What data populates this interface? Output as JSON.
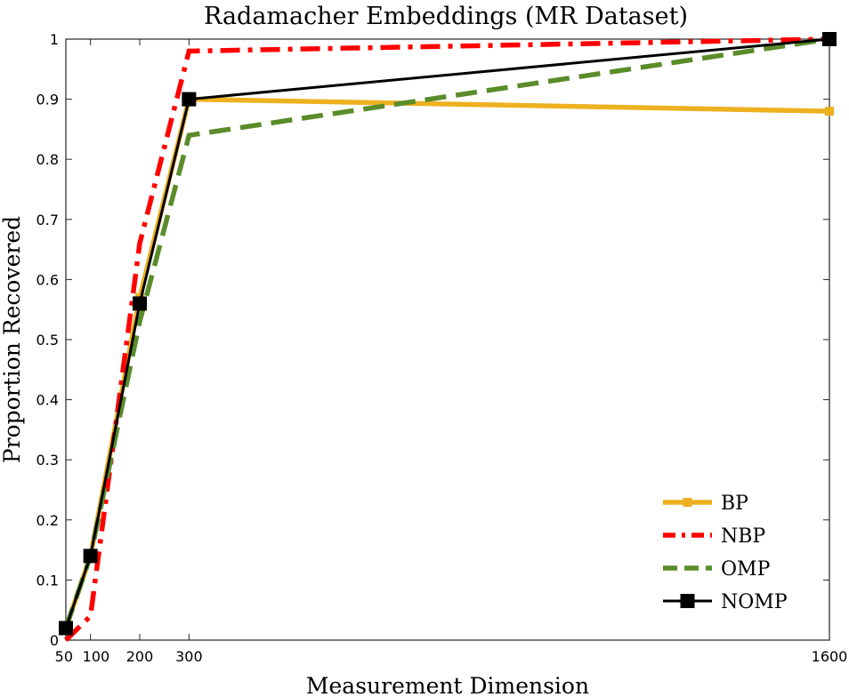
{
  "chart_data": {
    "type": "line",
    "title": "Radamacher Embeddings (MR Dataset)",
    "xlabel": "Measurement Dimension",
    "ylabel": "Proportion Recovered",
    "x": [
      50,
      100,
      200,
      300,
      1600
    ],
    "x_tick_labels": [
      "50",
      "100",
      "200",
      "300",
      "1600"
    ],
    "y_tick_labels": [
      "0",
      "0.1",
      "0.2",
      "0.3",
      "0.4",
      "0.5",
      "0.6",
      "0.7",
      "0.8",
      "0.9",
      "1"
    ],
    "xlim": [
      50,
      1600
    ],
    "ylim": [
      0,
      1
    ],
    "grid": false,
    "legend_position": "bottom-right",
    "series": [
      {
        "name": "BP",
        "values": [
          0.02,
          0.14,
          0.57,
          0.9,
          0.88
        ],
        "color": "#EDB120",
        "line_style": "solid",
        "marker": "square-small"
      },
      {
        "name": "NBP",
        "values": [
          0.0,
          0.04,
          0.66,
          0.98,
          1.0
        ],
        "color": "#FF0000",
        "line_style": "dashdot",
        "marker": "none"
      },
      {
        "name": "OMP",
        "values": [
          0.02,
          0.14,
          0.53,
          0.84,
          1.0
        ],
        "color": "#5B8C2A",
        "line_style": "dashed",
        "marker": "none"
      },
      {
        "name": "NOMP",
        "values": [
          0.02,
          0.14,
          0.56,
          0.9,
          1.0
        ],
        "color": "#000000",
        "line_style": "solid",
        "marker": "square"
      }
    ]
  }
}
